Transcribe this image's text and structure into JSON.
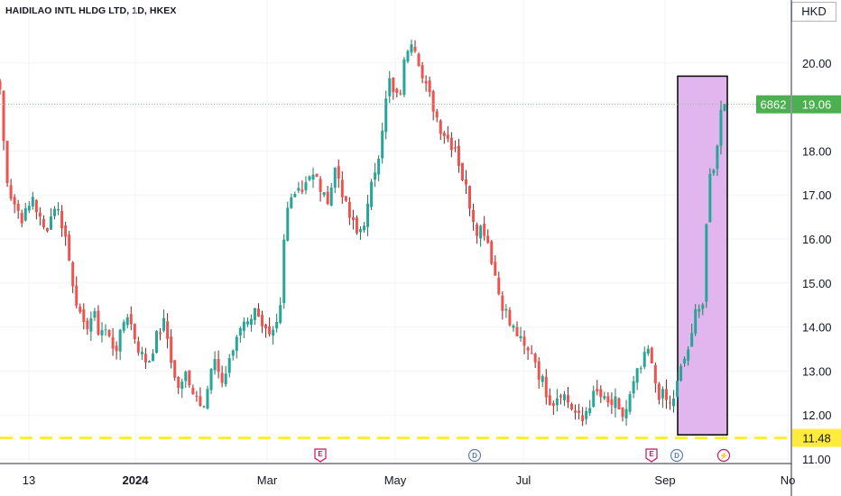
{
  "header": {
    "title": "HAIDILAO INTL HLDG LTD, 1D, HKEX",
    "currency": "HKD"
  },
  "colors": {
    "up": "#26a69a",
    "down": "#ef5350",
    "up_wick": "#1e7a4f",
    "down_wick": "#8b1e1e",
    "price_label_bg": "#4caf50",
    "support_line": "#ffeb3b",
    "highlight_fill": "#e1b6ee",
    "highlight_border": "#000000",
    "grid": "#f0f3fa",
    "event_red": "#c2185b",
    "event_blue": "#5b7fae"
  },
  "chart_data": {
    "type": "candlestick",
    "ylim": [
      11.0,
      20.8
    ],
    "yticks": [
      "11.00",
      "12.00",
      "13.00",
      "14.00",
      "15.00",
      "16.00",
      "17.00",
      "18.00",
      "19.00",
      "20.00"
    ],
    "xticks": [
      {
        "label": "13",
        "bold": false
      },
      {
        "label": "2024",
        "bold": true
      },
      {
        "label": "Mar",
        "bold": false
      },
      {
        "label": "May",
        "bold": false
      },
      {
        "label": "Jul",
        "bold": false
      },
      {
        "label": "Sep",
        "bold": false
      },
      {
        "label": "No",
        "bold": false
      }
    ],
    "close_path": [
      19.4,
      17.6,
      17.0,
      16.7,
      16.5,
      16.6,
      17.0,
      16.5,
      16.2,
      16.4,
      16.8,
      16.5,
      16.0,
      15.2,
      14.6,
      13.9,
      14.1,
      14.3,
      13.9,
      14.0,
      13.7,
      13.5,
      13.8,
      14.4,
      14.0,
      13.6,
      13.3,
      13.2,
      13.6,
      13.9,
      14.1,
      13.4,
      12.7,
      12.6,
      13.0,
      12.6,
      12.4,
      12.3,
      12.7,
      13.3,
      12.7,
      12.9,
      13.4,
      13.6,
      14.1,
      14.2,
      14.3,
      14.4,
      14.0,
      13.7,
      13.8,
      14.2,
      16.5,
      16.9,
      17.3,
      17.1,
      17.5,
      17.4,
      17.3,
      16.9,
      17.0,
      17.6,
      17.3,
      16.7,
      16.4,
      16.1,
      16.3,
      16.7,
      17.4,
      18.0,
      18.9,
      19.6,
      19.1,
      19.4,
      20.3,
      20.6,
      20.3,
      19.6,
      19.3,
      19.0,
      18.6,
      18.4,
      18.2,
      18.1,
      17.5,
      17.1,
      16.6,
      16.2,
      16.3,
      15.9,
      15.3,
      14.7,
      14.4,
      14.0,
      13.9,
      13.6,
      13.4,
      13.5,
      13.0,
      12.7,
      12.4,
      12.3,
      12.6,
      12.4,
      12.2,
      12.0,
      11.8,
      12.2,
      12.4,
      12.5,
      12.3,
      12.2,
      12.3,
      11.9,
      12.1,
      12.5,
      12.9,
      13.1,
      13.5,
      12.9,
      12.5,
      12.4,
      12.2,
      12.5,
      13.0,
      13.4,
      13.7,
      14.6,
      14.5,
      17.2,
      17.5,
      18.6,
      19.4
    ],
    "last_close": 19.06,
    "last_price_tag": "6862",
    "last_value_label": "19.06",
    "support_level": 11.48,
    "support_label": "11.48",
    "highlight_box": {
      "y_low": 11.55,
      "y_high": 19.7
    },
    "events": [
      {
        "type": "earnings",
        "glyph": "E"
      },
      {
        "type": "dividend",
        "glyph": "D"
      },
      {
        "type": "earnings",
        "glyph": "E"
      },
      {
        "type": "dividend",
        "glyph": "D"
      },
      {
        "type": "split",
        "glyph": "⚡"
      }
    ]
  }
}
